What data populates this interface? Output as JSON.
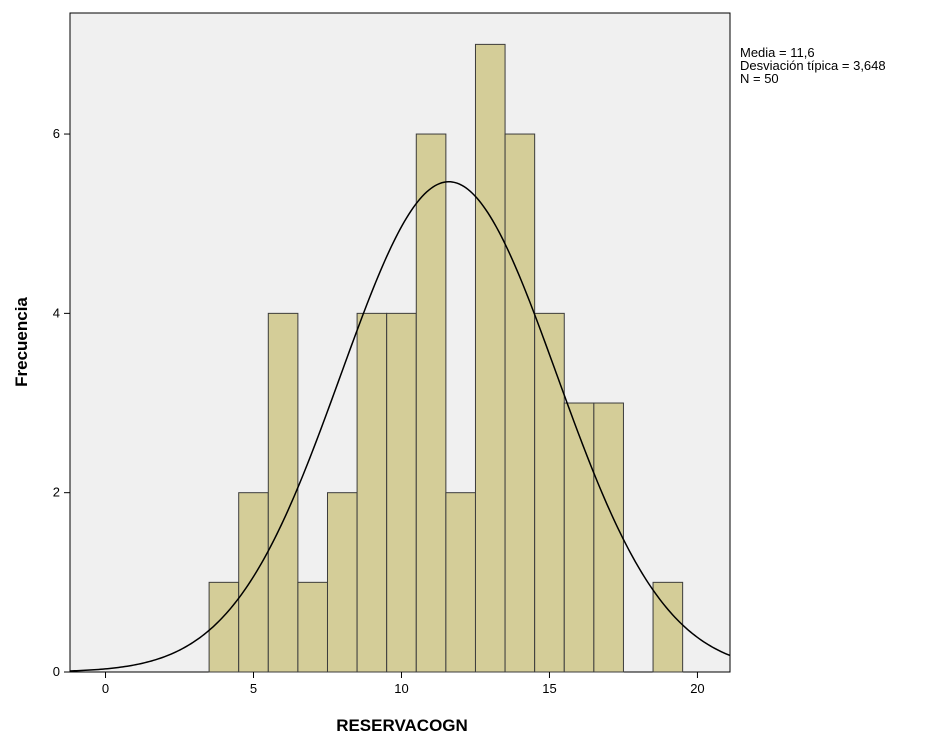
{
  "chart_data": {
    "type": "bar",
    "xlabel": "RESERVACOGN",
    "ylabel": "Frecuencia",
    "xlim": [
      -1.2,
      21.1
    ],
    "ylim": [
      0,
      7.35
    ],
    "x_ticks": [
      0,
      5,
      10,
      15,
      20
    ],
    "y_ticks": [
      0,
      2,
      4,
      6
    ],
    "bin_width": 1,
    "bins": [
      {
        "center": 4,
        "count": 1
      },
      {
        "center": 5,
        "count": 2
      },
      {
        "center": 6,
        "count": 4
      },
      {
        "center": 7,
        "count": 1
      },
      {
        "center": 8,
        "count": 2
      },
      {
        "center": 9,
        "count": 4
      },
      {
        "center": 10,
        "count": 4
      },
      {
        "center": 11,
        "count": 6
      },
      {
        "center": 12,
        "count": 2
      },
      {
        "center": 13,
        "count": 7
      },
      {
        "center": 14,
        "count": 6
      },
      {
        "center": 15,
        "count": 4
      },
      {
        "center": 16,
        "count": 3
      },
      {
        "center": 17,
        "count": 3
      },
      {
        "center": 19,
        "count": 1
      }
    ],
    "normal_curve": {
      "mean": 11.6,
      "sd": 3.648,
      "n": 50
    },
    "stats_lines": [
      "Media = 11,6",
      "Desviación típica = 3,648",
      "N = 50"
    ],
    "colors": {
      "bar_fill": "#d4cd98",
      "bar_stroke": "#3c3c3c",
      "plot_bg": "#f0f0f0",
      "curve": "#000000"
    }
  }
}
